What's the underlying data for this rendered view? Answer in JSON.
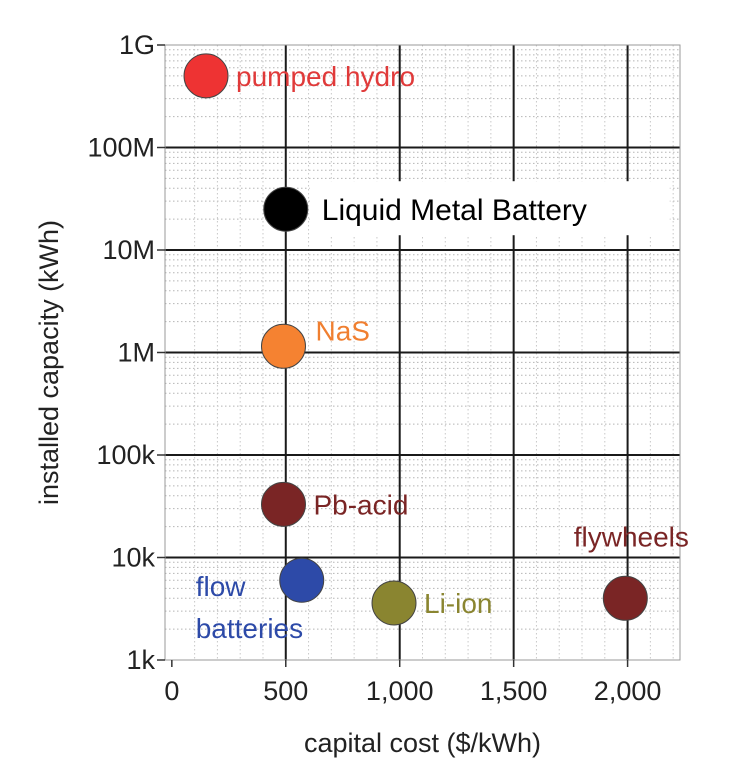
{
  "chart_data": {
    "type": "scatter",
    "xlabel": "capital cost ($/kWh)",
    "ylabel": "installed capacity (kWh)",
    "xlim": [
      -30,
      2230
    ],
    "ylim_log10": [
      3,
      9
    ],
    "x_scale": "linear",
    "y_scale": "log",
    "grid": true,
    "x_ticks": [
      {
        "value": 0,
        "label": "0"
      },
      {
        "value": 500,
        "label": "500"
      },
      {
        "value": 1000,
        "label": "1,000"
      },
      {
        "value": 1500,
        "label": "1,500"
      },
      {
        "value": 2000,
        "label": "2,000"
      }
    ],
    "y_ticks": [
      {
        "value": 1000,
        "label": "1k"
      },
      {
        "value": 10000,
        "label": "10k"
      },
      {
        "value": 100000,
        "label": "100k"
      },
      {
        "value": 1000000,
        "label": "1M"
      },
      {
        "value": 10000000,
        "label": "10M"
      },
      {
        "value": 100000000,
        "label": "100M"
      },
      {
        "value": 1000000000,
        "label": "1G"
      }
    ],
    "points": [
      {
        "label": "pumped hydro",
        "x": 150,
        "y": 500000000,
        "color": "#ee3333",
        "label_color": "#e03a3a",
        "label_pos": "right"
      },
      {
        "label": "Liquid Metal Battery",
        "x": 500,
        "y": 25000000,
        "color": "#000000",
        "label_color": "#000000",
        "label_pos": "right-boxed"
      },
      {
        "label": "NaS",
        "x": 490,
        "y": 1150000,
        "color": "#f58231",
        "label_color": "#f07f30",
        "label_pos": "upper-right"
      },
      {
        "label": "Pb-acid",
        "x": 490,
        "y": 33000,
        "color": "#7a2525",
        "label_color": "#7a2525",
        "label_pos": "right"
      },
      {
        "label": "flow batteries",
        "lines": [
          "flow",
          "batteries"
        ],
        "x": 570,
        "y": 6000,
        "color": "#2d4aa8",
        "label_color": "#2d4aa8",
        "label_pos": "lower-left"
      },
      {
        "label": "Li-ion",
        "x": 975,
        "y": 3600,
        "color": "#8a8530",
        "label_color": "#8a8530",
        "label_pos": "right"
      },
      {
        "label": "flywheels",
        "x": 1990,
        "y": 4000,
        "color": "#7a2525",
        "label_color": "#7a2525",
        "label_pos": "above"
      }
    ]
  }
}
